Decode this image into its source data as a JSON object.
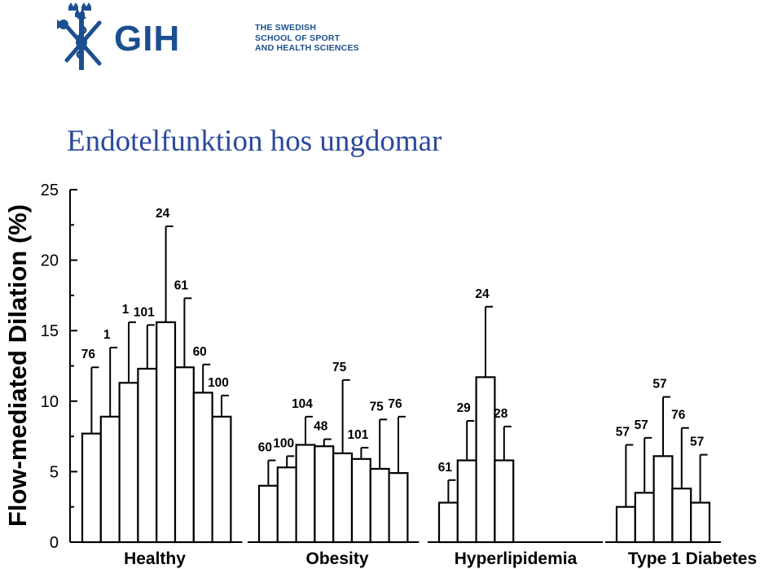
{
  "logo": {
    "name": "GIH",
    "lines": [
      "THE SWEDISH",
      "SCHOOL OF SPORT",
      "AND HEALTH SCIENCES"
    ]
  },
  "slide": {
    "title": "Endotelfunktion hos ungdomar"
  },
  "colors": {
    "brand": "#1c4f8f",
    "title": "#2a4a9c",
    "bars": "#ffffff",
    "stroke": "#000000"
  },
  "chart_data": {
    "type": "bar",
    "ylabel": "Flow-mediated Dilation (%)",
    "ylim": [
      0,
      25
    ],
    "yticks": [
      0,
      5,
      10,
      15,
      20,
      25
    ],
    "grid": false,
    "error_bars": "upper",
    "groups": [
      {
        "name": "Healthy",
        "bars": [
          {
            "value": 7.7,
            "error_top": 12.4,
            "label": "76"
          },
          {
            "value": 8.9,
            "error_top": 13.8,
            "label": "1"
          },
          {
            "value": 11.3,
            "error_top": 15.6,
            "label": "1"
          },
          {
            "value": 12.3,
            "error_top": 15.4,
            "label": "101"
          },
          {
            "value": 15.6,
            "error_top": 22.4,
            "label": "24"
          },
          {
            "value": 12.4,
            "error_top": 17.3,
            "label": "61"
          },
          {
            "value": 10.6,
            "error_top": 12.6,
            "label": "60"
          },
          {
            "value": 8.9,
            "error_top": 10.4,
            "label": "100"
          }
        ]
      },
      {
        "name": "Obesity",
        "bars": [
          {
            "value": 4.0,
            "error_top": 5.8,
            "label": "60"
          },
          {
            "value": 5.3,
            "error_top": 6.1,
            "label": "100"
          },
          {
            "value": 6.9,
            "error_top": 8.9,
            "label": "104"
          },
          {
            "value": 6.8,
            "error_top": 7.3,
            "label": "48"
          },
          {
            "value": 6.3,
            "error_top": 11.5,
            "label": "75"
          },
          {
            "value": 5.9,
            "error_top": 6.7,
            "label": "101"
          },
          {
            "value": 5.2,
            "error_top": 8.7,
            "label": "75"
          },
          {
            "value": 4.9,
            "error_top": 8.9,
            "label": "76"
          }
        ]
      },
      {
        "name": "Hyperlipidemia",
        "bars": [
          {
            "value": 2.8,
            "error_top": 4.4,
            "label": "61"
          },
          {
            "value": 5.8,
            "error_top": 8.6,
            "label": "29"
          },
          {
            "value": 11.7,
            "error_top": 16.7,
            "label": "24"
          },
          {
            "value": 5.8,
            "error_top": 8.2,
            "label": "28"
          }
        ]
      },
      {
        "name": "Type 1 Diabetes",
        "bars": [
          {
            "value": 2.5,
            "error_top": 6.9,
            "label": "57"
          },
          {
            "value": 3.5,
            "error_top": 7.4,
            "label": "57"
          },
          {
            "value": 6.1,
            "error_top": 10.3,
            "label": "57"
          },
          {
            "value": 3.8,
            "error_top": 8.1,
            "label": "76"
          },
          {
            "value": 2.8,
            "error_top": 6.2,
            "label": "57"
          }
        ]
      }
    ]
  }
}
